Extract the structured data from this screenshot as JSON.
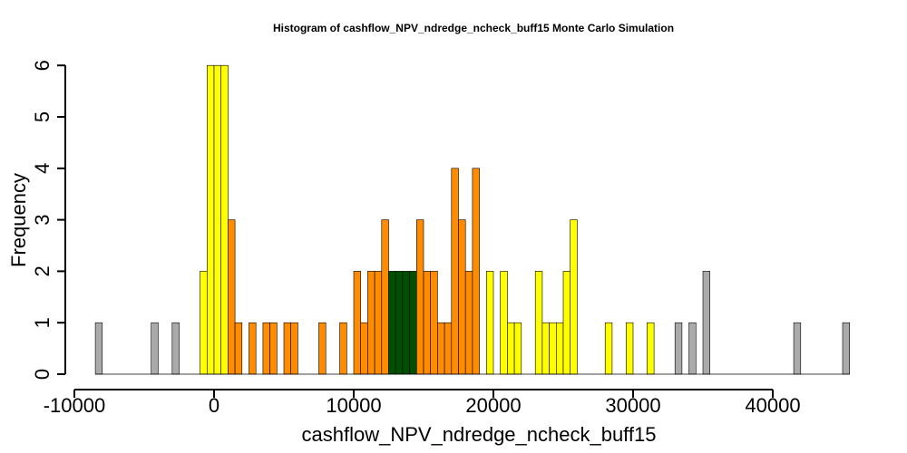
{
  "chart_data": {
    "type": "bar",
    "title": "Histogram of  cashflow_NPV_ndredge_ncheck_buff15  Monte Carlo Simulation",
    "xlabel": "cashflow_NPV_ndredge_ncheck_buff15",
    "ylabel": "Frequency",
    "xlim": [
      -10000,
      45500
    ],
    "ylim": [
      0,
      6
    ],
    "bin_width": 500,
    "x_ticks": [
      -10000,
      0,
      10000,
      20000,
      30000,
      40000
    ],
    "x_tick_labels": [
      "-10000",
      "0",
      "10000",
      "20000",
      "30000",
      "40000"
    ],
    "y_ticks": [
      0,
      1,
      2,
      3,
      4,
      5,
      6
    ],
    "y_tick_labels": [
      "0",
      "1",
      "2",
      "3",
      "4",
      "5",
      "6"
    ],
    "grid": false,
    "colors": {
      "grey": "#aaaaaa",
      "yellow": "#ffff00",
      "orange": "#ff8c00",
      "green": "#005000"
    },
    "bins": [
      {
        "x": -8500,
        "count": 1,
        "color": "grey"
      },
      {
        "x": -4500,
        "count": 1,
        "color": "grey"
      },
      {
        "x": -3000,
        "count": 1,
        "color": "grey"
      },
      {
        "x": -1000,
        "count": 2,
        "color": "yellow"
      },
      {
        "x": -500,
        "count": 6,
        "color": "yellow"
      },
      {
        "x": 0,
        "count": 6,
        "color": "yellow"
      },
      {
        "x": 500,
        "count": 6,
        "color": "yellow"
      },
      {
        "x": 1000,
        "count": 3,
        "color": "orange"
      },
      {
        "x": 1500,
        "count": 1,
        "color": "orange"
      },
      {
        "x": 2500,
        "count": 1,
        "color": "orange"
      },
      {
        "x": 3500,
        "count": 1,
        "color": "orange"
      },
      {
        "x": 4000,
        "count": 1,
        "color": "orange"
      },
      {
        "x": 5000,
        "count": 1,
        "color": "orange"
      },
      {
        "x": 5500,
        "count": 1,
        "color": "orange"
      },
      {
        "x": 7500,
        "count": 1,
        "color": "orange"
      },
      {
        "x": 9000,
        "count": 1,
        "color": "orange"
      },
      {
        "x": 10000,
        "count": 2,
        "color": "orange"
      },
      {
        "x": 10500,
        "count": 1,
        "color": "orange"
      },
      {
        "x": 11000,
        "count": 2,
        "color": "orange"
      },
      {
        "x": 11500,
        "count": 2,
        "color": "orange"
      },
      {
        "x": 12000,
        "count": 3,
        "color": "orange"
      },
      {
        "x": 12500,
        "count": 2,
        "color": "green"
      },
      {
        "x": 13000,
        "count": 2,
        "color": "green"
      },
      {
        "x": 13500,
        "count": 2,
        "color": "green"
      },
      {
        "x": 14000,
        "count": 2,
        "color": "green"
      },
      {
        "x": 14500,
        "count": 3,
        "color": "orange"
      },
      {
        "x": 15000,
        "count": 2,
        "color": "orange"
      },
      {
        "x": 15500,
        "count": 2,
        "color": "orange"
      },
      {
        "x": 16000,
        "count": 1,
        "color": "orange"
      },
      {
        "x": 16500,
        "count": 1,
        "color": "orange"
      },
      {
        "x": 17000,
        "count": 4,
        "color": "orange"
      },
      {
        "x": 17500,
        "count": 3,
        "color": "orange"
      },
      {
        "x": 18000,
        "count": 2,
        "color": "orange"
      },
      {
        "x": 18500,
        "count": 4,
        "color": "orange"
      },
      {
        "x": 19500,
        "count": 2,
        "color": "yellow"
      },
      {
        "x": 20500,
        "count": 2,
        "color": "yellow"
      },
      {
        "x": 21000,
        "count": 1,
        "color": "yellow"
      },
      {
        "x": 21500,
        "count": 1,
        "color": "yellow"
      },
      {
        "x": 23000,
        "count": 2,
        "color": "yellow"
      },
      {
        "x": 23500,
        "count": 1,
        "color": "yellow"
      },
      {
        "x": 24000,
        "count": 1,
        "color": "yellow"
      },
      {
        "x": 24500,
        "count": 1,
        "color": "yellow"
      },
      {
        "x": 25000,
        "count": 2,
        "color": "yellow"
      },
      {
        "x": 25500,
        "count": 3,
        "color": "yellow"
      },
      {
        "x": 28000,
        "count": 1,
        "color": "yellow"
      },
      {
        "x": 29500,
        "count": 1,
        "color": "yellow"
      },
      {
        "x": 31000,
        "count": 1,
        "color": "yellow"
      },
      {
        "x": 33000,
        "count": 1,
        "color": "grey"
      },
      {
        "x": 34000,
        "count": 1,
        "color": "grey"
      },
      {
        "x": 35000,
        "count": 2,
        "color": "grey"
      },
      {
        "x": 41500,
        "count": 1,
        "color": "grey"
      },
      {
        "x": 45000,
        "count": 1,
        "color": "grey"
      }
    ]
  }
}
